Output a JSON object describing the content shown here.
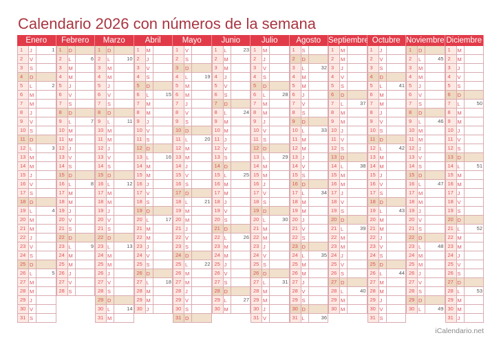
{
  "title": "Calendario 2026 con números de la semana",
  "footer": "iCalendario.net",
  "colors": {
    "accent": "#e13b49",
    "title": "#a83540",
    "sunday": "#f1e0cb",
    "day_cell": "#fde9e3"
  },
  "months": [
    {
      "name": "Enero",
      "letters": "JVSDLMMJVSDLMMJVSDLMMJVSDLMMJVS",
      "weeks": [
        [
          1,
          1
        ],
        [
          5,
          2
        ],
        [
          12,
          3
        ],
        [
          19,
          4
        ],
        [
          26,
          5
        ]
      ]
    },
    {
      "name": "Febrero",
      "letters": "DLMMJVSDLMMJVSDLMMJVSDLMMJVS",
      "weeks": [
        [
          2,
          6
        ],
        [
          9,
          7
        ],
        [
          16,
          8
        ],
        [
          23,
          9
        ]
      ]
    },
    {
      "name": "Marzo",
      "letters": "DLMMJVSDLMMJVSDLMMJVSDLMMJVSDLM",
      "weeks": [
        [
          2,
          10
        ],
        [
          9,
          11
        ],
        [
          16,
          12
        ],
        [
          23,
          13
        ],
        [
          30,
          14
        ]
      ]
    },
    {
      "name": "Abril",
      "letters": "MJVSDLMMJVSDLMMJVSDLMMJVSDLMMJ",
      "weeks": [
        [
          6,
          15
        ],
        [
          13,
          16
        ],
        [
          20,
          17
        ],
        [
          27,
          18
        ]
      ]
    },
    {
      "name": "Mayo",
      "letters": "VSDLMMJVSDLMMJVSDLMMJVSDLMMJVSD",
      "weeks": [
        [
          4,
          19
        ],
        [
          11,
          20
        ],
        [
          18,
          21
        ],
        [
          25,
          22
        ]
      ]
    },
    {
      "name": "Junio",
      "letters": "LMMJVSDLMMJVSDLMMJVSDLMMJVSDLM",
      "weeks": [
        [
          1,
          23
        ],
        [
          8,
          24
        ],
        [
          15,
          25
        ],
        [
          22,
          26
        ],
        [
          29,
          27
        ]
      ]
    },
    {
      "name": "Julio",
      "letters": "MJVSDLMMJVSDLMMJVSDLMMJVSDLMMJV",
      "weeks": [
        [
          6,
          28
        ],
        [
          13,
          29
        ],
        [
          20,
          30
        ],
        [
          27,
          31
        ]
      ]
    },
    {
      "name": "Agosto",
      "letters": "SDLMMJVSDLMMJVSDLMMJVSDLMMJVSDL",
      "weeks": [
        [
          3,
          32
        ],
        [
          10,
          33
        ],
        [
          17,
          34
        ],
        [
          24,
          35
        ],
        [
          31,
          36
        ]
      ]
    },
    {
      "name": "Septiembre",
      "letters": "MMJVSDLMMJVSDLMMJVSDLMMJVSDLMM",
      "weeks": [
        [
          7,
          37
        ],
        [
          14,
          38
        ],
        [
          21,
          39
        ],
        [
          28,
          40
        ]
      ]
    },
    {
      "name": "Octubre",
      "letters": "JVSDLMMJVSDLMMJVSDLMMJVSDLMMJVS",
      "weeks": [
        [
          5,
          41
        ],
        [
          12,
          42
        ],
        [
          19,
          43
        ],
        [
          26,
          44
        ]
      ]
    },
    {
      "name": "Noviembre",
      "letters": "DLMMJVSDLMMJVSDLMMJVSDLMMJVSDL",
      "weeks": [
        [
          2,
          45
        ],
        [
          9,
          46
        ],
        [
          16,
          47
        ],
        [
          23,
          48
        ],
        [
          30,
          49
        ]
      ]
    },
    {
      "name": "Diciembre",
      "letters": "MMJVSDLMMJVSDLMMJVSDLMMJVSDLMMJ",
      "weeks": [
        [
          7,
          50
        ],
        [
          14,
          51
        ],
        [
          21,
          52
        ],
        [
          28,
          53
        ]
      ]
    }
  ]
}
